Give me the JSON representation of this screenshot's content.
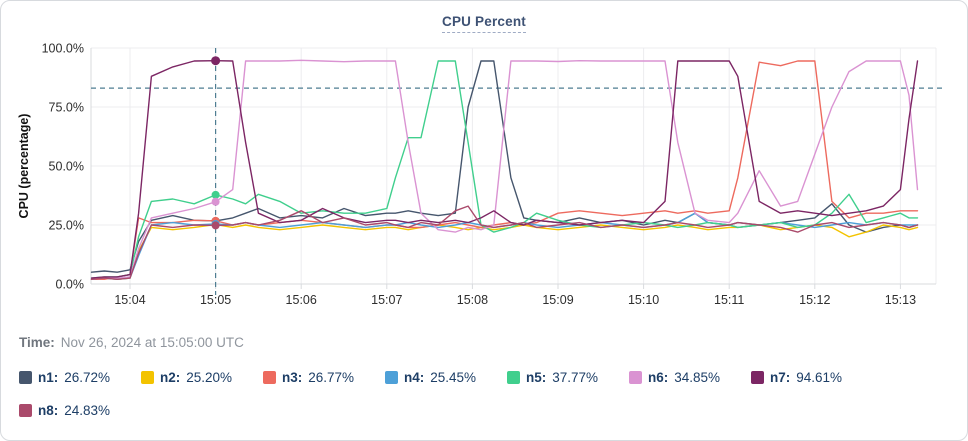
{
  "title": "CPU Percent",
  "time": {
    "label": "Time:",
    "value": "Nov 26, 2024 at 15:05:00 UTC"
  },
  "chart_data": {
    "type": "line",
    "title": "CPU Percent",
    "xlabel": "",
    "ylabel": "CPU (percentage)",
    "ylim": [
      0,
      100
    ],
    "grid": true,
    "threshold_percent": 83,
    "crosshair_time_minutes": 5.0,
    "dash_color": "#4e7d92",
    "grid_color": "#ececef",
    "axis_color": "#d8dbde",
    "yticks": [
      {
        "v": 0,
        "label": "0.0%"
      },
      {
        "v": 25,
        "label": "25.0%"
      },
      {
        "v": 50,
        "label": "50.0%"
      },
      {
        "v": 75,
        "label": "75.0%"
      },
      {
        "v": 100,
        "label": "100.0%"
      }
    ],
    "xticks": [
      {
        "t": 4,
        "label": "15:04"
      },
      {
        "t": 5,
        "label": "15:05"
      },
      {
        "t": 6,
        "label": "15:06"
      },
      {
        "t": 7,
        "label": "15:07"
      },
      {
        "t": 8,
        "label": "15:08"
      },
      {
        "t": 9,
        "label": "15:09"
      },
      {
        "t": 10,
        "label": "15:10"
      },
      {
        "t": 11,
        "label": "15:11"
      },
      {
        "t": 12,
        "label": "15:12"
      },
      {
        "t": 13,
        "label": "15:13"
      }
    ],
    "x_minutes": [
      3.55,
      3.7,
      3.85,
      4.0,
      4.1,
      4.25,
      4.5,
      4.75,
      5.0,
      5.2,
      5.35,
      5.5,
      5.75,
      6.0,
      6.25,
      6.5,
      6.75,
      7.0,
      7.1,
      7.25,
      7.4,
      7.6,
      7.8,
      7.95,
      8.1,
      8.25,
      8.45,
      8.6,
      8.75,
      9.0,
      9.25,
      9.5,
      9.75,
      10.0,
      10.25,
      10.4,
      10.6,
      10.75,
      11.0,
      11.1,
      11.35,
      11.6,
      11.8,
      12.0,
      12.2,
      12.4,
      12.6,
      12.8,
      13.0,
      13.1,
      13.2
    ],
    "series": [
      {
        "name": "n1",
        "color": "#46566d",
        "value_at_crosshair": 26.72,
        "display": "26.72%",
        "values": [
          5,
          5.5,
          5,
          6,
          18,
          27,
          29,
          27,
          26.72,
          28,
          30,
          32,
          28,
          29,
          28,
          32,
          29,
          30,
          30,
          31,
          30,
          29,
          30,
          75,
          94.5,
          94.5,
          45,
          28,
          27,
          26,
          28,
          26,
          27,
          25,
          27,
          26,
          30,
          26,
          25,
          26,
          25,
          26,
          27,
          28,
          34,
          25,
          22,
          24,
          25,
          24,
          25
        ]
      },
      {
        "name": "n2",
        "color": "#f3c300",
        "value_at_crosshair": 25.2,
        "display": "25.20%",
        "values": [
          2,
          2.5,
          2,
          2.5,
          14,
          24,
          23,
          24,
          25.2,
          24,
          25,
          24,
          23,
          24,
          25,
          24,
          23,
          24,
          24,
          23,
          24,
          25,
          24,
          23,
          24,
          23,
          24,
          25,
          24,
          23,
          24,
          25,
          24,
          23,
          24,
          25,
          24,
          23,
          24,
          24,
          25,
          23,
          24,
          25,
          24,
          20,
          22,
          25,
          24,
          23,
          24
        ]
      },
      {
        "name": "n3",
        "color": "#ed6a5e",
        "value_at_crosshair": 26.77,
        "display": "26.77%",
        "values": [
          2,
          2,
          3,
          4,
          28,
          26,
          26,
          27,
          26.77,
          25,
          26,
          25,
          26,
          27,
          26,
          25,
          24,
          25,
          25,
          24,
          24,
          25,
          26,
          25,
          24,
          25,
          26,
          25,
          26,
          30,
          31,
          30,
          29,
          30,
          31,
          30,
          31,
          30,
          31,
          45,
          94,
          92.5,
          94.5,
          94.5,
          35,
          28,
          30,
          30,
          31,
          31,
          31
        ]
      },
      {
        "name": "n4",
        "color": "#4da0d8",
        "value_at_crosshair": 25.45,
        "display": "25.45%",
        "values": [
          2,
          2.5,
          2,
          2.5,
          12,
          25,
          26,
          25,
          25.45,
          25,
          26,
          25,
          24,
          25,
          26,
          25,
          24,
          25,
          25,
          26,
          25,
          24,
          25,
          26,
          25,
          24,
          25,
          26,
          25,
          24,
          25,
          26,
          25,
          24,
          25,
          26,
          30,
          26,
          25,
          24,
          25,
          26,
          25,
          24,
          25,
          26,
          25,
          26,
          25,
          25,
          25
        ]
      },
      {
        "name": "n5",
        "color": "#40cf8d",
        "value_at_crosshair": 37.77,
        "display": "37.77%",
        "values": [
          2.5,
          3,
          3,
          4,
          20,
          35,
          36,
          34,
          37.77,
          36,
          34,
          38,
          35,
          30,
          31,
          30,
          30,
          32,
          45,
          62,
          62,
          94.5,
          94.5,
          60,
          25,
          22,
          24,
          26,
          30,
          27,
          25,
          24,
          25,
          26,
          25,
          24,
          25,
          26,
          25,
          24,
          25,
          26,
          24,
          25,
          30,
          38,
          26,
          28,
          30,
          28,
          28
        ]
      },
      {
        "name": "n6",
        "color": "#da93d2",
        "value_at_crosshair": 34.85,
        "display": "34.85%",
        "values": [
          2,
          2.5,
          2.5,
          3,
          15,
          28,
          30,
          32,
          34.85,
          40,
          94.5,
          94.5,
          94.5,
          94.8,
          94.5,
          94.2,
          94.5,
          94.5,
          94.5,
          60,
          30,
          23,
          22,
          24,
          23,
          25,
          94.5,
          94.5,
          94.5,
          94.3,
          94.6,
          94.5,
          94.5,
          94.5,
          94.5,
          60,
          30,
          27,
          26,
          30,
          48,
          33,
          35,
          55,
          75,
          90,
          94.5,
          94.5,
          94.5,
          80,
          40
        ]
      },
      {
        "name": "n7",
        "color": "#7c2664",
        "value_at_crosshair": 94.61,
        "display": "94.61%",
        "values": [
          2.5,
          3,
          3,
          4,
          30,
          88,
          92,
          94.5,
          94.61,
          94.5,
          60,
          30,
          26,
          27,
          32,
          28,
          26,
          27,
          27,
          26,
          27,
          26,
          27,
          26,
          28,
          31,
          26,
          25,
          27,
          26,
          25,
          26,
          27,
          26,
          35,
          94.5,
          94.5,
          94.5,
          94.5,
          88,
          35,
          30,
          31,
          30,
          29,
          30,
          31,
          33,
          40,
          70,
          94.5
        ]
      },
      {
        "name": "n8",
        "color": "#aa4a6b",
        "value_at_crosshair": 24.83,
        "display": "24.83%",
        "values": [
          2,
          2.5,
          2,
          2.5,
          13,
          25,
          24,
          25,
          24.83,
          25,
          26,
          25,
          27,
          31,
          26,
          28,
          25,
          26,
          25,
          24,
          26,
          25,
          31,
          33,
          25,
          24,
          25,
          26,
          24,
          25,
          26,
          24,
          25,
          24,
          25,
          26,
          25,
          24,
          25,
          26,
          25,
          24,
          22,
          25,
          26,
          24,
          25,
          26,
          25,
          24,
          25
        ]
      }
    ]
  }
}
